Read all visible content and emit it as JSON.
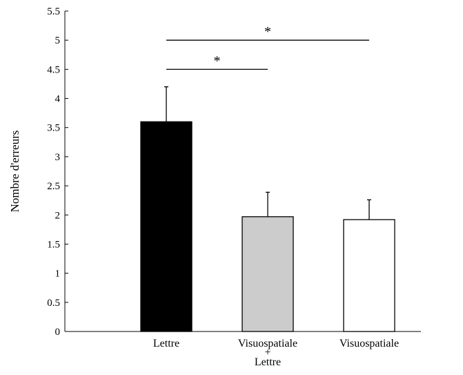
{
  "chart_data": {
    "type": "bar",
    "categories": [
      "Lettre",
      "Visuospatiale + Lettre",
      "Visuospatiale"
    ],
    "category_label_lines": [
      [
        "Lettre"
      ],
      [
        "Visuospatiale",
        "+",
        "Lettre"
      ],
      [
        "Visuospatiale"
      ]
    ],
    "values": [
      3.6,
      1.97,
      1.92
    ],
    "error_upper": [
      0.6,
      0.42,
      0.34
    ],
    "bar_colors": [
      "#000000",
      "#cccccc",
      "#ffffff"
    ],
    "ylabel": "Nombre d'erreurs",
    "xlabel": "",
    "ylim": [
      0,
      5.5
    ],
    "yticks": [
      0,
      0.5,
      1,
      1.5,
      2,
      2.5,
      3,
      3.5,
      4,
      4.5,
      5,
      5.5
    ],
    "ytick_labels": [
      "0",
      "0.5",
      "1",
      "1.5",
      "2",
      "2.5",
      "3",
      "3.5",
      "4",
      "4.5",
      "5",
      "5.5"
    ],
    "significance": [
      {
        "from": 0,
        "to": 2,
        "y": 5.0,
        "label": "*"
      },
      {
        "from": 0,
        "to": 1,
        "y": 4.5,
        "label": "*"
      }
    ],
    "grid": false
  }
}
